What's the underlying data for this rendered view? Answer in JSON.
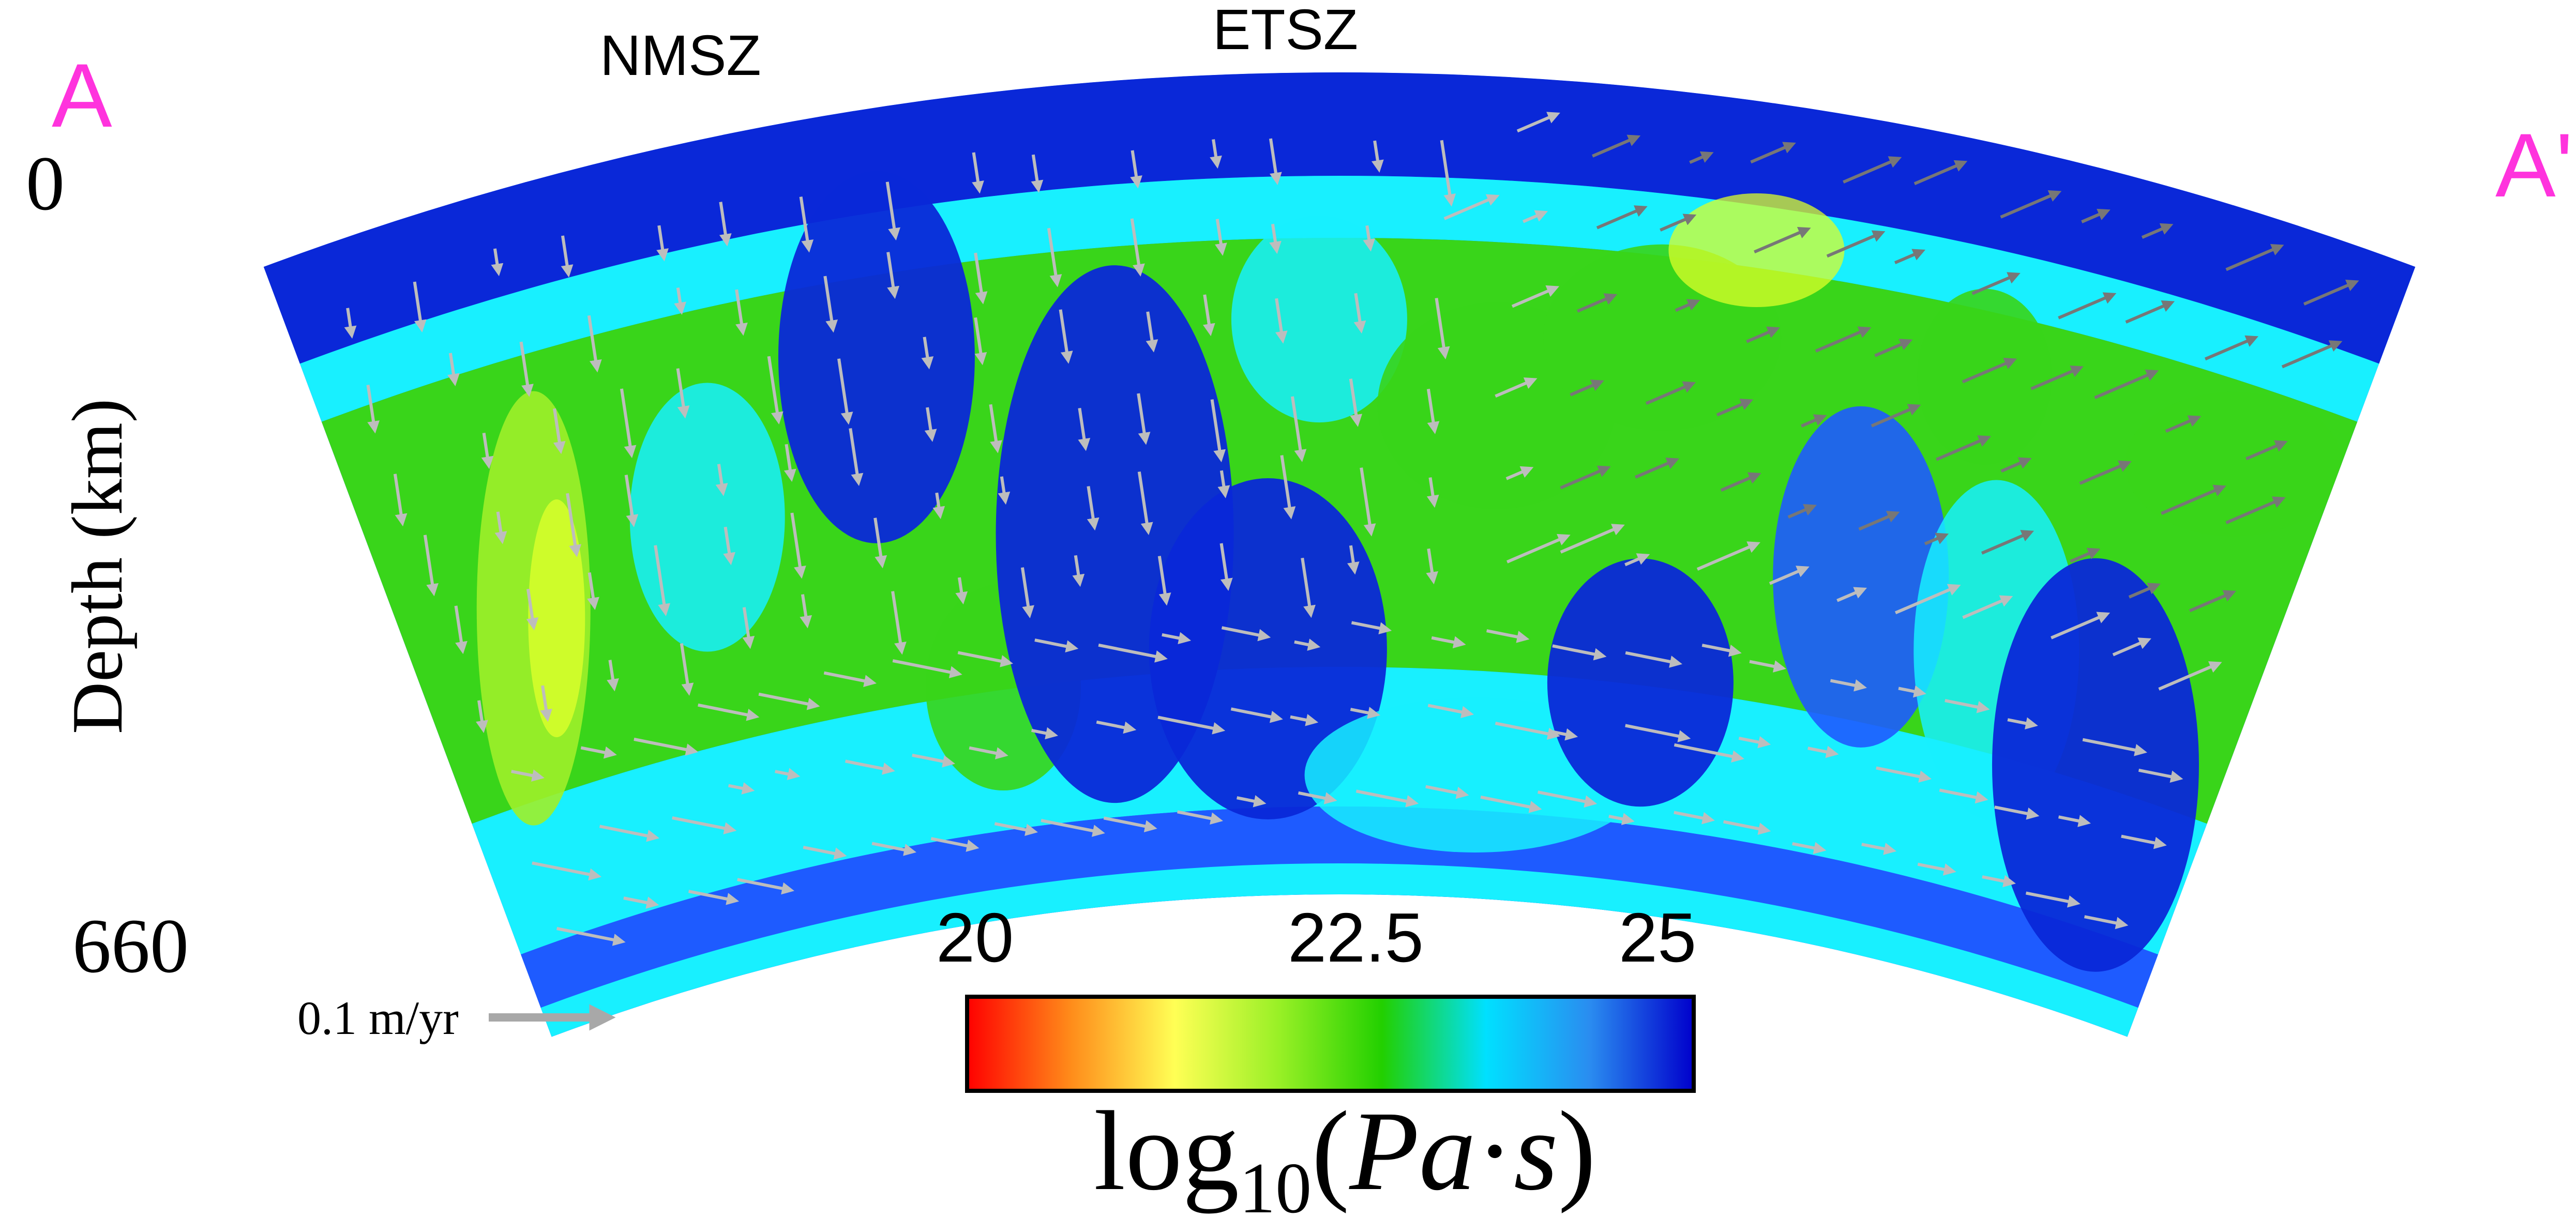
{
  "section": {
    "start_label": "A",
    "end_label": "A'",
    "label_color": "#ff33dd",
    "depth_top_label": "0",
    "depth_bottom_label": "660",
    "depth_axis_label": "Depth (km)",
    "zones": [
      {
        "label": "NMSZ"
      },
      {
        "label": "ETSZ"
      }
    ]
  },
  "velocity_scale": {
    "label": "0.1 m/yr",
    "arrow_color": "#a8a8a8"
  },
  "colorbar": {
    "ticks": [
      "20",
      "22.5",
      "25"
    ],
    "title_main": "log",
    "title_sub": "10",
    "title_paren_open": "(",
    "title_pa": "Pa",
    "title_dot": "·",
    "title_s": "s",
    "title_paren_close": ")",
    "min": 20,
    "max": 25,
    "stops": [
      "#ff0000",
      "#ff8c1a",
      "#ffff55",
      "#99f026",
      "#22d000",
      "#00e0ff",
      "#2a8cf0",
      "#0000cc"
    ]
  },
  "viscosity_colors": {
    "stiff": "#0a28d8",
    "blue": "#1e5bff",
    "cyan": "#18f0ff",
    "green": "#39d51a",
    "lightgreen": "#9ff02a",
    "yellow": "#dcff2a"
  }
}
